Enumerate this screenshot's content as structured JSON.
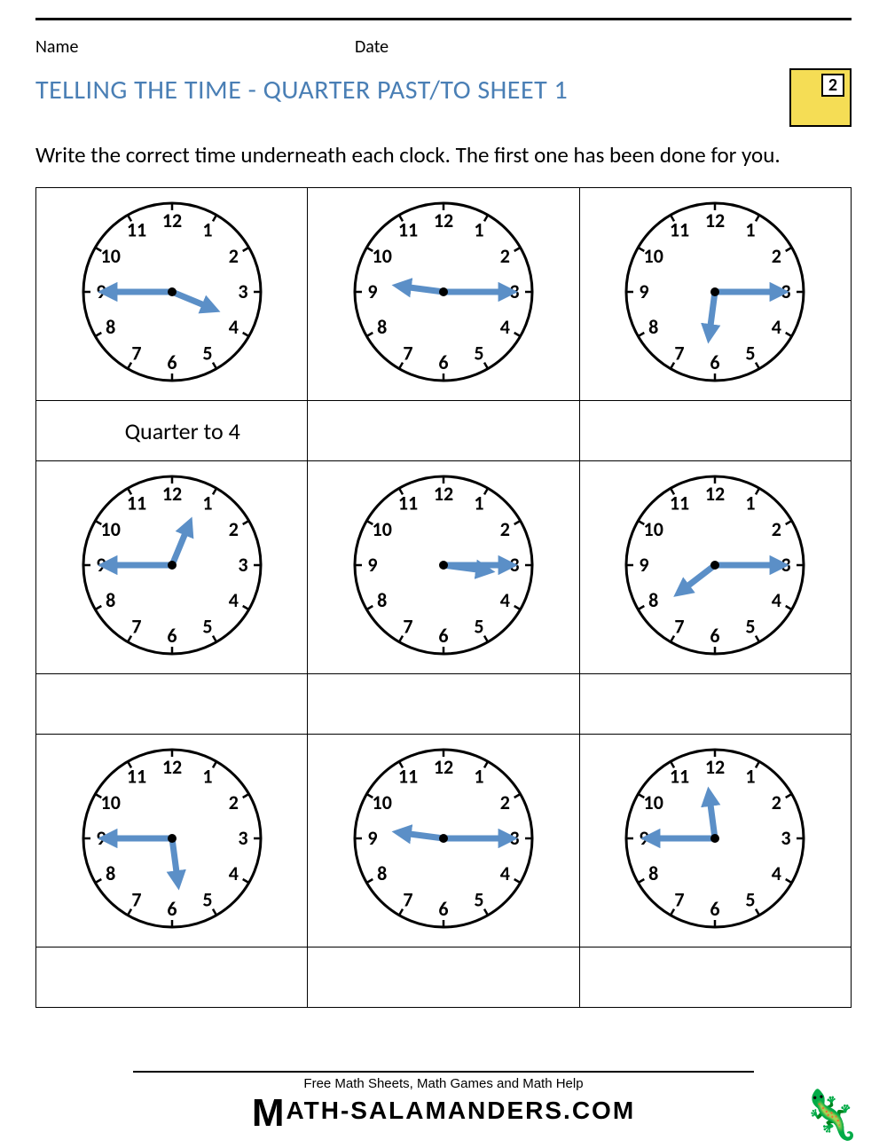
{
  "header": {
    "name_label": "Name",
    "date_label": "Date"
  },
  "title": "TELLING THE TIME - QUARTER PAST/TO SHEET 1",
  "badge_number": "2",
  "instructions": "Write the correct time underneath each clock. The first one has been done for you.",
  "clock_style": {
    "face_radius": 100,
    "stroke": "#000000",
    "stroke_width": 3,
    "hand_color": "#5b8fc7",
    "hour_hand_len": 50,
    "minute_hand_len": 75,
    "hand_width": 7,
    "number_font_size": 22,
    "tick_len": 8,
    "number_radius": 80
  },
  "numerals": [
    "12",
    "1",
    "2",
    "3",
    "4",
    "5",
    "6",
    "7",
    "8",
    "9",
    "10",
    "11"
  ],
  "clocks": [
    {
      "hour_angle": 112.5,
      "minute_angle": 270,
      "answer": "Quarter to 4"
    },
    {
      "hour_angle": 277.5,
      "minute_angle": 90,
      "answer": ""
    },
    {
      "hour_angle": 187.5,
      "minute_angle": 90,
      "answer": ""
    },
    {
      "hour_angle": 22.5,
      "minute_angle": 270,
      "answer": ""
    },
    {
      "hour_angle": 97.5,
      "minute_angle": 90,
      "answer": ""
    },
    {
      "hour_angle": 232.5,
      "minute_angle": 90,
      "answer": ""
    },
    {
      "hour_angle": 172.5,
      "minute_angle": 270,
      "answer": ""
    },
    {
      "hour_angle": 277.5,
      "minute_angle": 90,
      "answer": ""
    },
    {
      "hour_angle": 352.5,
      "minute_angle": 270,
      "answer": ""
    }
  ],
  "footer": {
    "tagline": "Free Math Sheets, Math Games and Math Help",
    "brand_rest": "ATH-SALAMANDERS.COM"
  }
}
